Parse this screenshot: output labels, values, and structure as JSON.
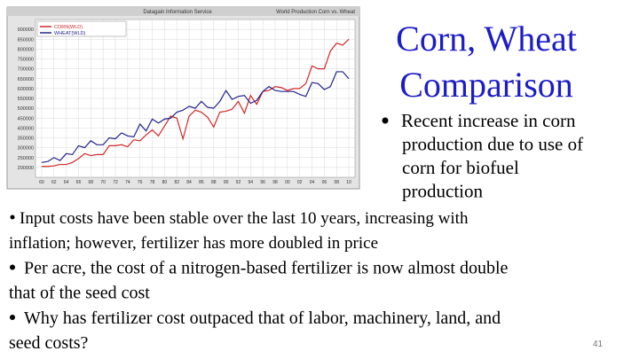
{
  "slide": {
    "title_lines": [
      "Corn, Wheat",
      "Comparison"
    ],
    "bullets": [
      {
        "lines": [
          "Recent increase in corn",
          "production due to use of",
          "corn for biofuel",
          "production"
        ]
      },
      {
        "lines": [
          "Input costs have been stable over the last 10 years, increasing with",
          "inflation; however, fertilizer has more doubled in price"
        ]
      },
      {
        "lines": [
          "Per acre, the cost of a nitrogen-based fertilizer is now almost double",
          "that of the seed cost"
        ]
      },
      {
        "lines": [
          "Why has fertilizer cost outpaced  that of labor, machinery, land, and",
          "seed costs?"
        ]
      }
    ],
    "page_number": "41"
  },
  "chart_data": {
    "type": "line",
    "header": "Datagain Information Service",
    "title": "World Production Corn vs. Wheat",
    "x": [
      1960,
      1961,
      1962,
      1963,
      1964,
      1965,
      1966,
      1967,
      1968,
      1969,
      1970,
      1971,
      1972,
      1973,
      1974,
      1975,
      1976,
      1977,
      1978,
      1979,
      1980,
      1981,
      1982,
      1983,
      1984,
      1985,
      1986,
      1987,
      1988,
      1989,
      1990,
      1991,
      1992,
      1993,
      1994,
      1995,
      1996,
      1997,
      1998,
      1999,
      2000,
      2001,
      2002,
      2003,
      2004,
      2005,
      2006,
      2007,
      2008,
      2009,
      2010
    ],
    "series": [
      {
        "name": "CORN(WLD)",
        "color": "#d02828",
        "values": [
          205000,
          205000,
          208000,
          215000,
          215000,
          225000,
          245000,
          270000,
          260000,
          265000,
          265000,
          310000,
          310000,
          315000,
          305000,
          340000,
          335000,
          365000,
          390000,
          360000,
          410000,
          460000,
          450000,
          345000,
          460000,
          490000,
          480000,
          455000,
          405000,
          480000,
          485000,
          495000,
          535000,
          475000,
          565000,
          520000,
          585000,
          590000,
          610000,
          605000,
          590000,
          600000,
          600000,
          625000,
          715000,
          700000,
          700000,
          790000,
          830000,
          820000,
          850000
        ]
      },
      {
        "name": "WHEAT(WLD)",
        "color": "#24248e",
        "values": [
          225000,
          230000,
          250000,
          235000,
          270000,
          265000,
          310000,
          300000,
          335000,
          315000,
          315000,
          350000,
          345000,
          375000,
          360000,
          355000,
          420000,
          385000,
          445000,
          425000,
          445000,
          450000,
          480000,
          490000,
          510000,
          500000,
          535000,
          505000,
          500000,
          535000,
          590000,
          545000,
          560000,
          565000,
          525000,
          540000,
          585000,
          610000,
          590000,
          585000,
          585000,
          585000,
          570000,
          560000,
          630000,
          625000,
          595000,
          610000,
          685000,
          685000,
          650000
        ]
      }
    ],
    "xlim": [
      1959,
      2011
    ],
    "xticks": [
      {
        "value": 1960,
        "label": "60"
      },
      {
        "value": 1962,
        "label": "62"
      },
      {
        "value": 1964,
        "label": "64"
      },
      {
        "value": 1966,
        "label": "66"
      },
      {
        "value": 1968,
        "label": "68"
      },
      {
        "value": 1970,
        "label": "70"
      },
      {
        "value": 1972,
        "label": "72"
      },
      {
        "value": 1974,
        "label": "74"
      },
      {
        "value": 1976,
        "label": "76"
      },
      {
        "value": 1978,
        "label": "78"
      },
      {
        "value": 1980,
        "label": "80"
      },
      {
        "value": 1982,
        "label": "82"
      },
      {
        "value": 1984,
        "label": "84"
      },
      {
        "value": 1986,
        "label": "86"
      },
      {
        "value": 1988,
        "label": "88"
      },
      {
        "value": 1990,
        "label": "90"
      },
      {
        "value": 1992,
        "label": "92"
      },
      {
        "value": 1994,
        "label": "94"
      },
      {
        "value": 1996,
        "label": "96"
      },
      {
        "value": 1998,
        "label": "98"
      },
      {
        "value": 2000,
        "label": "00"
      },
      {
        "value": 2002,
        "label": "02"
      },
      {
        "value": 2004,
        "label": "04"
      },
      {
        "value": 2006,
        "label": "06"
      },
      {
        "value": 2008,
        "label": "08"
      },
      {
        "value": 2010,
        "label": "10"
      }
    ],
    "ylim": [
      150000,
      950000
    ],
    "yticks": [
      200000,
      250000,
      300000,
      350000,
      400000,
      450000,
      500000,
      550000,
      600000,
      650000,
      700000,
      750000,
      800000,
      850000,
      900000
    ],
    "grid": true
  }
}
